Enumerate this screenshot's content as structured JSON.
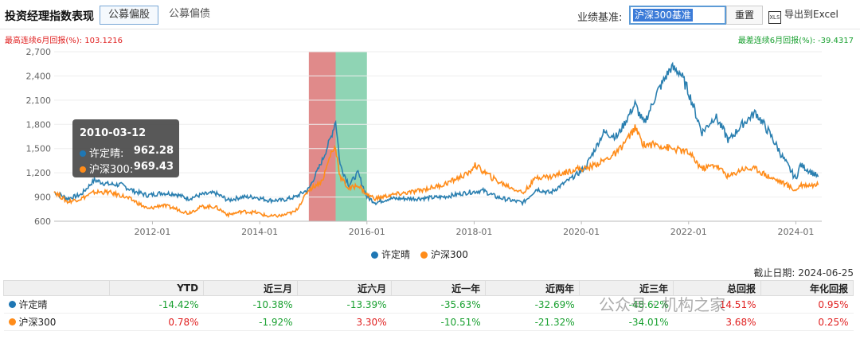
{
  "header": {
    "title": "投资经理指数表现",
    "tabs": [
      {
        "label": "公募偏股",
        "active": true
      },
      {
        "label": "公募偏债",
        "active": false
      }
    ],
    "benchmark_label": "业绩基准:",
    "benchmark_value": "沪深300基准",
    "reset_label": "重置",
    "excel_icon_text": "XLS",
    "export_label": "导出到Excel"
  },
  "stats": {
    "best_label": "最高连续6月回报(%): 103.1216",
    "worst_label": "最差连续6月回报(%): -39.4317"
  },
  "tooltip": {
    "date": "2010-03-12",
    "rows": [
      {
        "name": "许定晴:",
        "value": "962.28",
        "color": "#1f77b4"
      },
      {
        "name": "沪深300:",
        "value": "969.43",
        "color": "#ff8c1a"
      }
    ]
  },
  "chart_data": {
    "type": "line",
    "y_ticks": [
      "2,700",
      "2,400",
      "2,100",
      "1,800",
      "1,500",
      "1,200",
      "900",
      "600"
    ],
    "x_ticks": [
      "2012-01",
      "2014-01",
      "2016-01",
      "2018-01",
      "2020-01",
      "2022-01",
      "2024-01"
    ],
    "ylim": [
      600,
      2700
    ],
    "highlight_bands": [
      {
        "from": "2014-12",
        "to": "2015-06",
        "color": "#e08a8a"
      },
      {
        "from": "2015-06",
        "to": "2016-01",
        "color": "#8fd4b4"
      }
    ],
    "series": [
      {
        "name": "许定晴",
        "color": "#2a7fb0",
        "points": [
          [
            "2010-03",
            962
          ],
          [
            "2010-06",
            880
          ],
          [
            "2010-09",
            930
          ],
          [
            "2010-12",
            1110
          ],
          [
            "2011-03",
            1060
          ],
          [
            "2011-06",
            1050
          ],
          [
            "2011-09",
            970
          ],
          [
            "2011-12",
            920
          ],
          [
            "2012-03",
            950
          ],
          [
            "2012-06",
            940
          ],
          [
            "2012-09",
            880
          ],
          [
            "2012-12",
            930
          ],
          [
            "2013-03",
            950
          ],
          [
            "2013-06",
            860
          ],
          [
            "2013-09",
            900
          ],
          [
            "2013-12",
            900
          ],
          [
            "2014-03",
            860
          ],
          [
            "2014-06",
            860
          ],
          [
            "2014-09",
            900
          ],
          [
            "2014-12",
            1000
          ],
          [
            "2015-03",
            1350
          ],
          [
            "2015-05",
            1650
          ],
          [
            "2015-06",
            1850
          ],
          [
            "2015-07",
            1300
          ],
          [
            "2015-09",
            1050
          ],
          [
            "2015-11",
            1200
          ],
          [
            "2016-01",
            900
          ],
          [
            "2016-03",
            830
          ],
          [
            "2016-06",
            880
          ],
          [
            "2016-12",
            880
          ],
          [
            "2017-06",
            900
          ],
          [
            "2017-12",
            960
          ],
          [
            "2018-03",
            980
          ],
          [
            "2018-06",
            900
          ],
          [
            "2018-10",
            850
          ],
          [
            "2018-12",
            830
          ],
          [
            "2019-03",
            1000
          ],
          [
            "2019-06",
            950
          ],
          [
            "2019-12",
            1180
          ],
          [
            "2020-02",
            1280
          ],
          [
            "2020-06",
            1700
          ],
          [
            "2020-09",
            1650
          ],
          [
            "2021-01",
            2050
          ],
          [
            "2021-03",
            1800
          ],
          [
            "2021-06",
            2200
          ],
          [
            "2021-09",
            2500
          ],
          [
            "2021-11",
            2450
          ],
          [
            "2022-01",
            2200
          ],
          [
            "2022-04",
            1700
          ],
          [
            "2022-07",
            1900
          ],
          [
            "2022-10",
            1600
          ],
          [
            "2023-01",
            1800
          ],
          [
            "2023-04",
            1950
          ],
          [
            "2023-07",
            1700
          ],
          [
            "2023-10",
            1400
          ],
          [
            "2024-01",
            1120
          ],
          [
            "2024-02",
            1300
          ],
          [
            "2024-06",
            1150
          ]
        ]
      },
      {
        "name": "沪深300",
        "color": "#ff8c1a",
        "points": [
          [
            "2010-03",
            969
          ],
          [
            "2010-06",
            840
          ],
          [
            "2010-09",
            880
          ],
          [
            "2010-12",
            960
          ],
          [
            "2011-03",
            960
          ],
          [
            "2011-06",
            920
          ],
          [
            "2011-09",
            850
          ],
          [
            "2011-12",
            750
          ],
          [
            "2012-03",
            800
          ],
          [
            "2012-06",
            760
          ],
          [
            "2012-09",
            700
          ],
          [
            "2012-12",
            780
          ],
          [
            "2013-03",
            780
          ],
          [
            "2013-06",
            680
          ],
          [
            "2013-09",
            720
          ],
          [
            "2013-12",
            710
          ],
          [
            "2014-03",
            660
          ],
          [
            "2014-06",
            670
          ],
          [
            "2014-09",
            720
          ],
          [
            "2014-12",
            990
          ],
          [
            "2015-03",
            1100
          ],
          [
            "2015-05",
            1450
          ],
          [
            "2015-06",
            1520
          ],
          [
            "2015-07",
            1150
          ],
          [
            "2015-09",
            1000
          ],
          [
            "2015-11",
            1050
          ],
          [
            "2016-01",
            930
          ],
          [
            "2016-03",
            880
          ],
          [
            "2016-06",
            920
          ],
          [
            "2016-12",
            970
          ],
          [
            "2017-06",
            1050
          ],
          [
            "2017-12",
            1200
          ],
          [
            "2018-01",
            1300
          ],
          [
            "2018-06",
            1100
          ],
          [
            "2018-10",
            1000
          ],
          [
            "2018-12",
            950
          ],
          [
            "2019-03",
            1150
          ],
          [
            "2019-06",
            1150
          ],
          [
            "2019-12",
            1250
          ],
          [
            "2020-02",
            1250
          ],
          [
            "2020-06",
            1350
          ],
          [
            "2020-09",
            1450
          ],
          [
            "2021-01",
            1750
          ],
          [
            "2021-03",
            1550
          ],
          [
            "2021-06",
            1550
          ],
          [
            "2021-09",
            1500
          ],
          [
            "2021-11",
            1480
          ],
          [
            "2022-01",
            1450
          ],
          [
            "2022-04",
            1250
          ],
          [
            "2022-07",
            1300
          ],
          [
            "2022-10",
            1150
          ],
          [
            "2023-01",
            1250
          ],
          [
            "2023-04",
            1250
          ],
          [
            "2023-07",
            1150
          ],
          [
            "2023-10",
            1080
          ],
          [
            "2024-01",
            980
          ],
          [
            "2024-02",
            1050
          ],
          [
            "2024-06",
            1050
          ]
        ]
      }
    ]
  },
  "legend": [
    {
      "name": "许定晴",
      "color": "#1f77b4"
    },
    {
      "name": "沪深300",
      "color": "#ff8c1a"
    }
  ],
  "as_of": "截止日期: 2024-06-25",
  "table": {
    "headers": [
      "",
      "YTD",
      "近三月",
      "近六月",
      "近一年",
      "近两年",
      "近三年",
      "总回报",
      "年化回报"
    ],
    "rows": [
      {
        "name": "许定晴",
        "color": "#1f77b4",
        "values": [
          "-14.42%",
          "-10.38%",
          "-13.39%",
          "-35.63%",
          "-32.69%",
          "-48.62%",
          "14.51%",
          "0.95%"
        ]
      },
      {
        "name": "沪深300",
        "color": "#ff8c1a",
        "values": [
          "0.78%",
          "-1.92%",
          "3.30%",
          "-10.51%",
          "-21.32%",
          "-34.01%",
          "3.68%",
          "0.25%"
        ]
      }
    ]
  },
  "watermark": "公众号 · 机构之家"
}
